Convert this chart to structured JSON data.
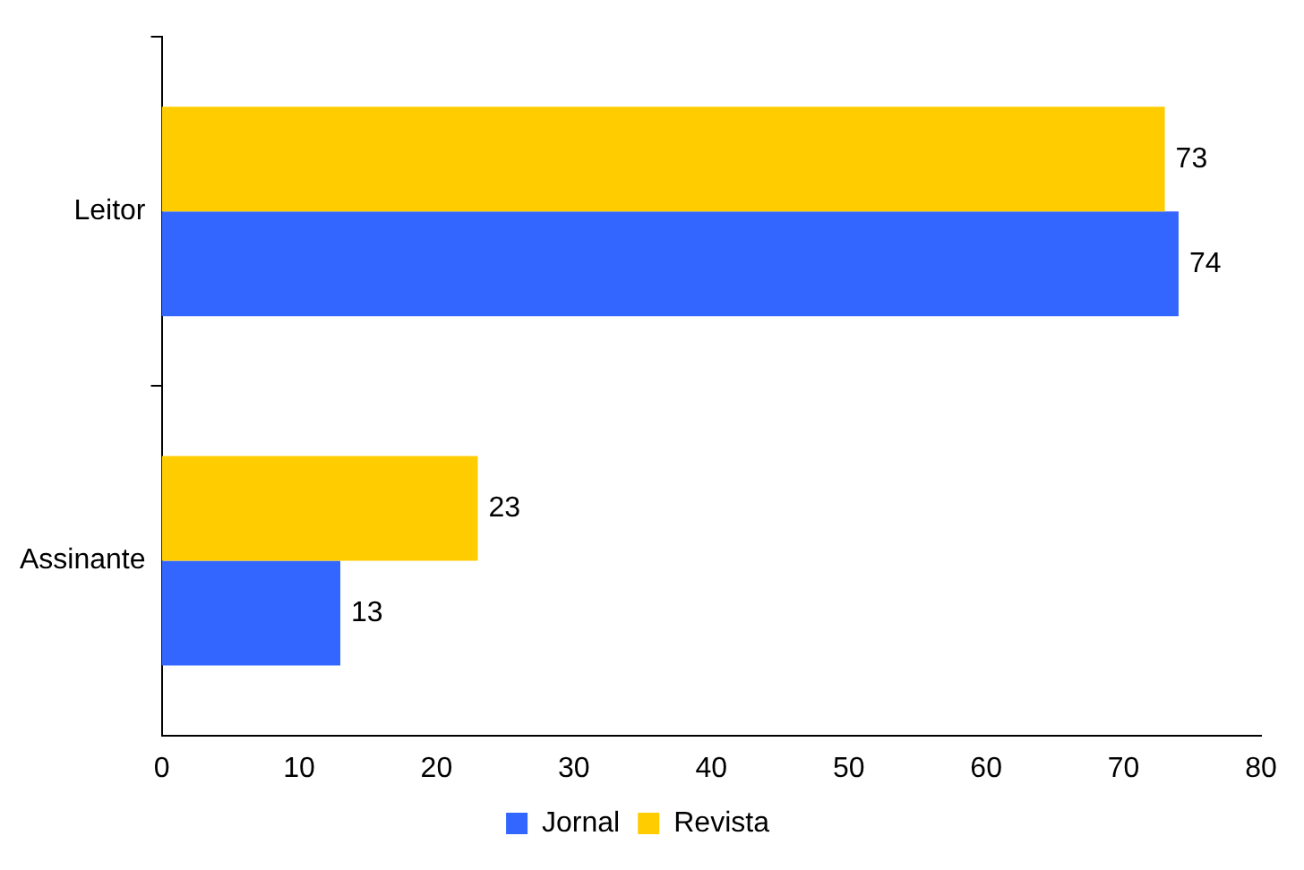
{
  "chart_data": {
    "type": "bar",
    "orientation": "horizontal",
    "categories": [
      "Leitor",
      "Assinante"
    ],
    "series": [
      {
        "name": "Jornal",
        "color": "#3366ff",
        "values": [
          74,
          13
        ]
      },
      {
        "name": "Revista",
        "color": "#ffcc00",
        "values": [
          73,
          23
        ]
      }
    ],
    "xlim": [
      0,
      80
    ],
    "xticks": [
      0,
      10,
      20,
      30,
      40,
      50,
      60,
      70,
      80
    ],
    "grid": false,
    "legend": "bottom",
    "data_labels": true
  }
}
